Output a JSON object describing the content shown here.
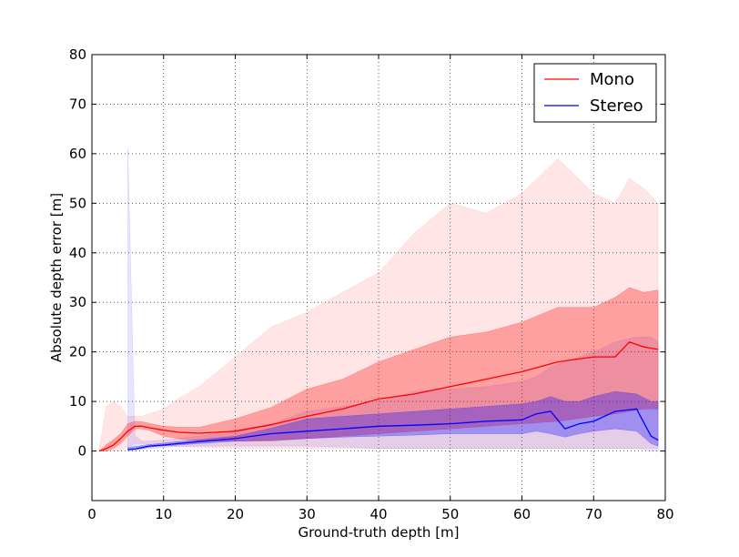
{
  "chart_data": {
    "type": "line",
    "title": "",
    "xlabel": "Ground-truth depth [m]",
    "ylabel": "Absolute depth error [m]",
    "xlim": [
      0,
      80
    ],
    "ylim": [
      -10,
      80
    ],
    "xticks": [
      "0",
      "10",
      "20",
      "30",
      "40",
      "50",
      "60",
      "70",
      "80"
    ],
    "yticks": [
      "0",
      "10",
      "20",
      "30",
      "40",
      "50",
      "60",
      "70",
      "80"
    ],
    "grid": true,
    "legend_position": "top-right",
    "series": [
      {
        "name": "Mono",
        "color": "#ff0000",
        "x": [
          1,
          2,
          3,
          4,
          5,
          6,
          7,
          8,
          10,
          12,
          15,
          20,
          25,
          30,
          35,
          40,
          45,
          50,
          55,
          60,
          65,
          70,
          73,
          75,
          77,
          79
        ],
        "mean": [
          0,
          0.5,
          1.2,
          2.5,
          4,
          5,
          5,
          4.7,
          4.2,
          3.8,
          3.6,
          4,
          5.3,
          7,
          8.5,
          10.5,
          11.5,
          13,
          14.5,
          16,
          18,
          19,
          19,
          22,
          21,
          20.5
        ],
        "band_inner": [
          [
            0,
            0
          ],
          [
            0,
            1.3
          ],
          [
            0.5,
            2.3
          ],
          [
            1.5,
            3.5
          ],
          [
            3,
            5.5
          ],
          [
            4.5,
            6
          ],
          [
            4.5,
            5.9
          ],
          [
            4.2,
            5.6
          ],
          [
            3,
            5
          ],
          [
            2.5,
            4.8
          ],
          [
            2,
            4.8
          ],
          [
            2,
            6.5
          ],
          [
            2,
            8.8
          ],
          [
            2.5,
            12.5
          ],
          [
            3,
            14.5
          ],
          [
            3.5,
            18
          ],
          [
            4,
            20.5
          ],
          [
            4.5,
            23
          ],
          [
            5,
            24
          ],
          [
            5.5,
            26
          ],
          [
            6,
            29
          ],
          [
            7,
            29
          ],
          [
            7.5,
            31
          ],
          [
            8,
            33
          ],
          [
            8.5,
            32
          ],
          [
            8.5,
            32.5
          ]
        ],
        "band_outer": [
          [
            0,
            0
          ],
          [
            0,
            9
          ],
          [
            0,
            10
          ],
          [
            0,
            9
          ],
          [
            1,
            7
          ],
          [
            1.5,
            7
          ],
          [
            1.5,
            7
          ],
          [
            1.2,
            7.5
          ],
          [
            1,
            8.5
          ],
          [
            1,
            10.5
          ],
          [
            0.8,
            13
          ],
          [
            0.5,
            19
          ],
          [
            0.5,
            25
          ],
          [
            0.5,
            28
          ],
          [
            0.5,
            32
          ],
          [
            0.5,
            36
          ],
          [
            0.5,
            44
          ],
          [
            0.5,
            50
          ],
          [
            0.5,
            48
          ],
          [
            0.5,
            52
          ],
          [
            0.5,
            59
          ],
          [
            0.5,
            52
          ],
          [
            0.5,
            50
          ],
          [
            0.5,
            55
          ],
          [
            0.5,
            53
          ],
          [
            0.5,
            50
          ]
        ]
      },
      {
        "name": "Stereo",
        "color": "#0000ff",
        "x": [
          5,
          6,
          7,
          8,
          10,
          12,
          15,
          20,
          25,
          30,
          35,
          40,
          45,
          50,
          55,
          60,
          62,
          64,
          66,
          68,
          70,
          73,
          76,
          78,
          79
        ],
        "mean": [
          0.3,
          0.4,
          0.7,
          1,
          1.2,
          1.5,
          1.9,
          2.5,
          3.5,
          4,
          4.5,
          5,
          5.2,
          5.5,
          6,
          6.3,
          7.5,
          8,
          4.5,
          5.5,
          6,
          8,
          8.5,
          3,
          2.2
        ],
        "band_inner": [
          [
            0.2,
            0.8
          ],
          [
            0.3,
            0.9
          ],
          [
            0.5,
            1.1
          ],
          [
            0.8,
            1.3
          ],
          [
            1,
            1.6
          ],
          [
            1.2,
            1.9
          ],
          [
            1.5,
            2.3
          ],
          [
            2,
            3
          ],
          [
            2.2,
            4.6
          ],
          [
            2.5,
            6.5
          ],
          [
            2.8,
            7
          ],
          [
            3,
            7.5
          ],
          [
            3.2,
            8
          ],
          [
            3.5,
            8.5
          ],
          [
            3.5,
            9
          ],
          [
            3.5,
            9.5
          ],
          [
            4,
            10
          ],
          [
            3.5,
            11
          ],
          [
            2.8,
            10
          ],
          [
            3.5,
            10
          ],
          [
            4,
            11
          ],
          [
            4.5,
            12
          ],
          [
            4,
            11.5
          ],
          [
            1.5,
            10
          ],
          [
            1,
            10
          ]
        ],
        "band_outer": [
          [
            0,
            61
          ],
          [
            0,
            3
          ],
          [
            0.3,
            2
          ],
          [
            0.5,
            2
          ],
          [
            0.7,
            2.2
          ],
          [
            0.9,
            2.5
          ],
          [
            1,
            3
          ],
          [
            1,
            4.2
          ],
          [
            1,
            5.5
          ],
          [
            1,
            8
          ],
          [
            0.8,
            9
          ],
          [
            0.5,
            10
          ],
          [
            0.5,
            12
          ],
          [
            0.5,
            12.5
          ],
          [
            0.5,
            13
          ],
          [
            0.5,
            14
          ],
          [
            0.5,
            15
          ],
          [
            0.5,
            17
          ],
          [
            0.5,
            18
          ],
          [
            0.5,
            19
          ],
          [
            0.5,
            20
          ],
          [
            0.5,
            22
          ],
          [
            0.5,
            23
          ],
          [
            0,
            23
          ],
          [
            0,
            22
          ]
        ]
      }
    ]
  }
}
